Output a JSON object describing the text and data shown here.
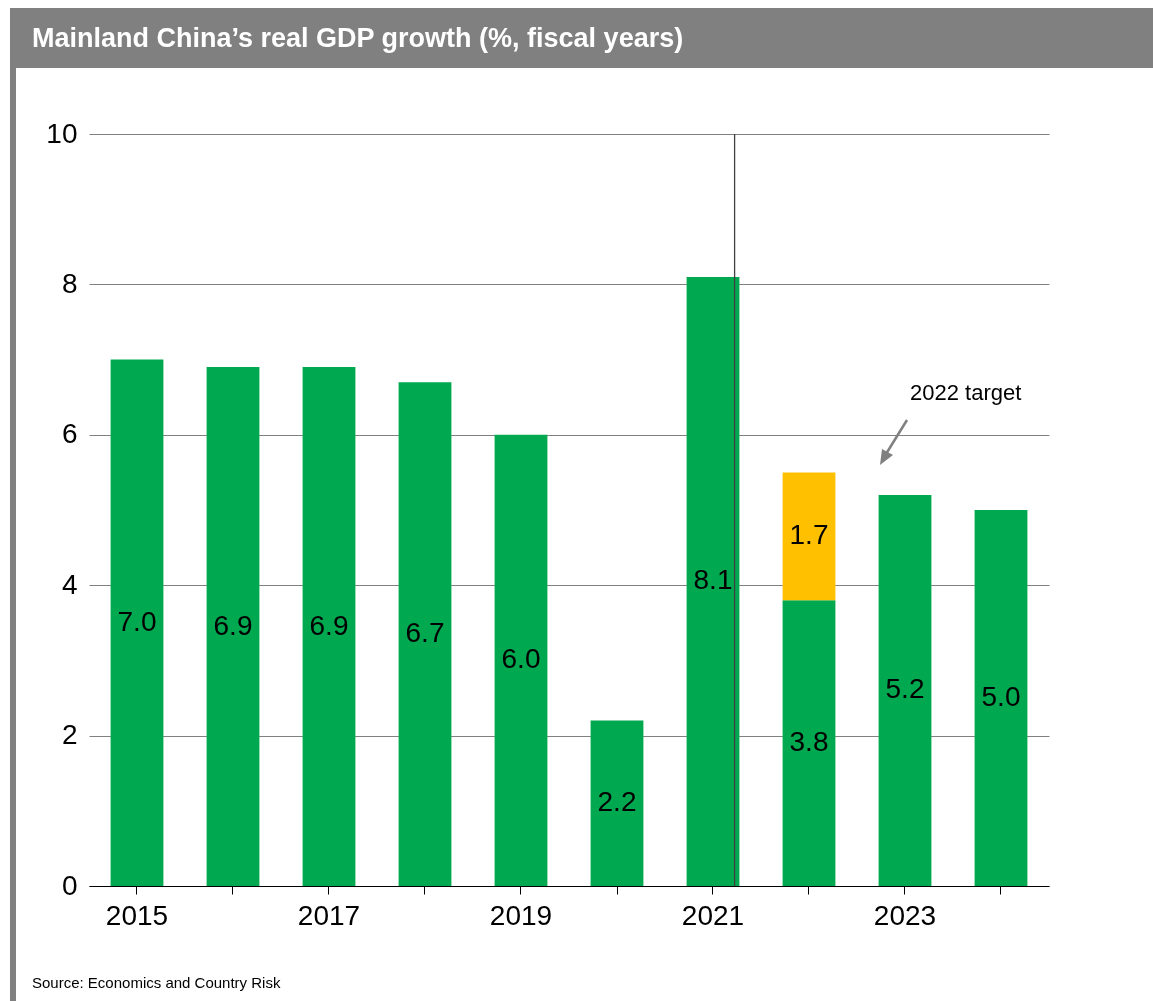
{
  "chart_data": {
    "type": "bar",
    "title": "Mainland China’s real GDP growth (%, fiscal years)",
    "categories": [
      "2015",
      null,
      "2017",
      null,
      "2019",
      null,
      "2021",
      null,
      "2023",
      null
    ],
    "stacked": true,
    "series": [
      {
        "color": "#00a84f",
        "values": [
          7.0,
          6.9,
          6.9,
          6.7,
          6.0,
          2.2,
          8.1,
          3.8,
          5.2,
          5.0
        ],
        "value_labels": [
          "7.0",
          "6.9",
          "6.9",
          "6.7",
          "6.0",
          "2.2",
          "8.1",
          "3.8",
          "5.2",
          "5.0"
        ]
      },
      {
        "color": "#ffc000",
        "values": [
          null,
          null,
          null,
          null,
          null,
          null,
          null,
          1.7,
          null,
          null
        ],
        "value_labels": [
          null,
          null,
          null,
          null,
          null,
          null,
          null,
          "1.7",
          null,
          null
        ]
      }
    ],
    "ylim": [
      0,
      10
    ],
    "yticks": [
      0,
      2,
      4,
      6,
      8,
      10
    ],
    "grid": "y",
    "annotations": [
      "2022 target",
      "Source: Economics and Country Risk"
    ]
  }
}
